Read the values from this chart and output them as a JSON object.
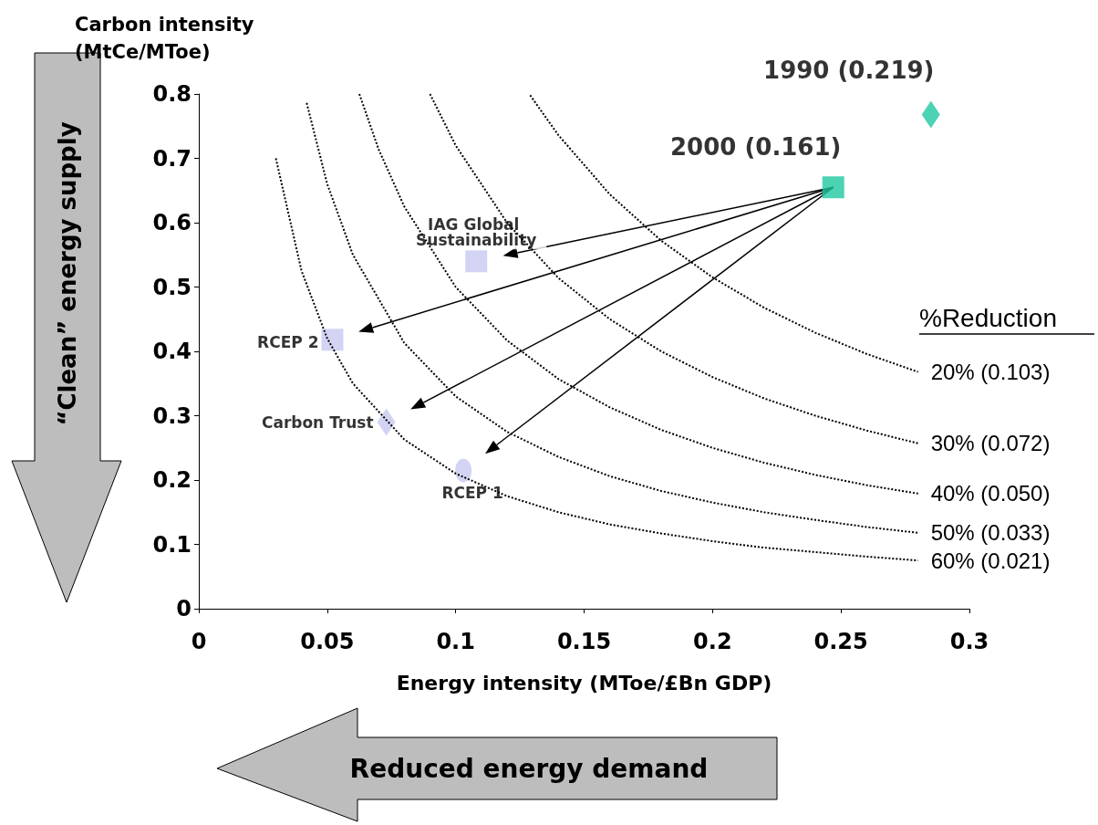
{
  "chart_data": {
    "type": "scatter",
    "xlabel": "Energy intensity (MToe/£Bn GDP)",
    "ylabel": "Carbon intensity (MtCe/MToe)",
    "xlim": [
      0,
      0.3
    ],
    "xticks": [
      0,
      0.05,
      0.1,
      0.15,
      0.2,
      0.25,
      0.3
    ],
    "ylim": [
      0,
      0.8
    ],
    "yticks": [
      0,
      0.1,
      0.2,
      0.3,
      0.4,
      0.5,
      0.6,
      0.7,
      0.8
    ],
    "grid": false,
    "legend": false,
    "annotations": [
      "%Reduction",
      "“Clean” energy supply",
      "Reduced energy demand"
    ],
    "series": [
      {
        "name": "1990 (0.219)",
        "color": "#1fc8a0",
        "marker": "diamond",
        "x": [
          0.285
        ],
        "values": [
          0.768
        ]
      },
      {
        "name": "2000 (0.161)",
        "color": "#1fc8a0",
        "marker": "square",
        "x": [
          0.247
        ],
        "values": [
          0.655
        ]
      },
      {
        "name": "IAG Global Sustainability",
        "color": "#c8c8f0",
        "marker": "square",
        "x": [
          0.108
        ],
        "values": [
          0.54
        ]
      },
      {
        "name": "RCEP 2",
        "color": "#c8c8f0",
        "marker": "square",
        "x": [
          0.052
        ],
        "values": [
          0.418
        ]
      },
      {
        "name": "Carbon Trust",
        "color": "#c8c8f0",
        "marker": "diamond",
        "x": [
          0.073
        ],
        "values": [
          0.29
        ]
      },
      {
        "name": "RCEP 1",
        "color": "#c8c8f0",
        "marker": "circle",
        "x": [
          0.103
        ],
        "values": [
          0.215
        ]
      },
      {
        "name": "20% (0.103)",
        "type": "line",
        "color": "#000000",
        "marker": "none",
        "line_style": "dotted",
        "x": [
          0.129,
          0.14,
          0.16,
          0.18,
          0.2,
          0.22,
          0.24,
          0.26,
          0.28
        ],
        "values": [
          0.798,
          0.736,
          0.644,
          0.572,
          0.515,
          0.468,
          0.429,
          0.396,
          0.368
        ]
      },
      {
        "name": "30% (0.072)",
        "type": "line",
        "color": "#000000",
        "marker": "none",
        "line_style": "dotted",
        "x": [
          0.09,
          0.1,
          0.12,
          0.14,
          0.16,
          0.18,
          0.2,
          0.22,
          0.24,
          0.26,
          0.28
        ],
        "values": [
          0.8,
          0.72,
          0.6,
          0.514,
          0.45,
          0.4,
          0.36,
          0.327,
          0.3,
          0.277,
          0.257
        ]
      },
      {
        "name": "40% (0.050)",
        "type": "line",
        "color": "#000000",
        "marker": "none",
        "line_style": "dotted",
        "x": [
          0.0625,
          0.07,
          0.08,
          0.1,
          0.12,
          0.14,
          0.16,
          0.18,
          0.2,
          0.22,
          0.24,
          0.26,
          0.28
        ],
        "values": [
          0.8,
          0.714,
          0.625,
          0.5,
          0.417,
          0.357,
          0.313,
          0.278,
          0.25,
          0.227,
          0.208,
          0.192,
          0.179
        ]
      },
      {
        "name": "50% (0.033)",
        "type": "line",
        "color": "#000000",
        "marker": "none",
        "line_style": "dotted",
        "x": [
          0.042,
          0.05,
          0.06,
          0.08,
          0.1,
          0.12,
          0.14,
          0.16,
          0.18,
          0.2,
          0.22,
          0.24,
          0.26,
          0.28
        ],
        "values": [
          0.786,
          0.66,
          0.55,
          0.413,
          0.33,
          0.275,
          0.236,
          0.206,
          0.183,
          0.165,
          0.15,
          0.138,
          0.127,
          0.118
        ]
      },
      {
        "name": "60% (0.021)",
        "type": "line",
        "color": "#000000",
        "marker": "none",
        "line_style": "dotted",
        "x": [
          0.03,
          0.04,
          0.05,
          0.06,
          0.08,
          0.1,
          0.12,
          0.14,
          0.16,
          0.18,
          0.2,
          0.22,
          0.24,
          0.26,
          0.28
        ],
        "values": [
          0.7,
          0.525,
          0.42,
          0.35,
          0.263,
          0.21,
          0.175,
          0.15,
          0.131,
          0.117,
          0.105,
          0.095,
          0.088,
          0.081,
          0.075
        ]
      }
    ]
  }
}
